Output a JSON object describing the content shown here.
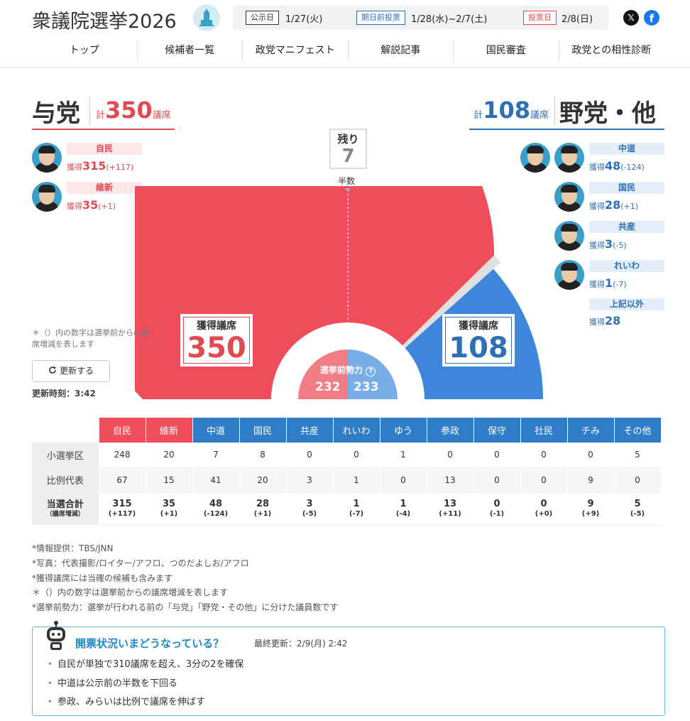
{
  "header": {
    "site_title": "衆議院選挙2026",
    "schedule": [
      {
        "label": "公示日",
        "date": "1/27(火)"
      },
      {
        "label": "期日前投票",
        "date": "1/28(水)~2/7(土)"
      },
      {
        "label": "投票日",
        "date": "2/8(日)"
      }
    ],
    "social": {
      "x": "𝕏",
      "facebook": "f"
    }
  },
  "nav": [
    "トップ",
    "候補者一覧",
    "政党マニフェスト",
    "解説記事",
    "国民審査",
    "政党との相性診断"
  ],
  "ruling": {
    "label": "与党",
    "total_prefix": "計",
    "total": "350",
    "total_suffix": "議席",
    "color": "#e24a52"
  },
  "opposition": {
    "label": "野党・他",
    "total_prefix": "計",
    "total": "108",
    "total_suffix": "議席",
    "color": "#2f6fb5"
  },
  "ruling_parties": [
    {
      "name": "自民",
      "seats_prefix": "獲得",
      "seats": "315",
      "diff": "(+117)"
    },
    {
      "name": "維新",
      "seats_prefix": "獲得",
      "seats": "35",
      "diff": "(+1)"
    }
  ],
  "opposition_parties": [
    {
      "name": "中道",
      "seats_prefix": "獲得",
      "seats": "48",
      "diff": "(-124)"
    },
    {
      "name": "国民",
      "seats_prefix": "獲得",
      "seats": "28",
      "diff": "(+1)"
    },
    {
      "name": "共産",
      "seats_prefix": "獲得",
      "seats": "3",
      "diff": "(-5)"
    },
    {
      "name": "れいわ",
      "seats_prefix": "獲得",
      "seats": "1",
      "diff": "(-7)"
    },
    {
      "name": "上記以外",
      "seats_prefix": "獲得",
      "seats": "28",
      "diff": ""
    }
  ],
  "remaining": {
    "label": "残り",
    "value": "7"
  },
  "half_label": "半数",
  "seat_chart": {
    "total_seats": 465,
    "ruling_seats": 350,
    "remaining_seats": 7,
    "opposition_seats": 108,
    "ruling_color": "#ef4d5c",
    "opposition_color": "#3d86dc",
    "remaining_color": "#e0e0e0",
    "ruling_box_label": "獲得議席",
    "ruling_box_value": "350",
    "opposition_box_label": "獲得議席",
    "opposition_box_value": "108"
  },
  "pre_election": {
    "label": "選挙前勢力",
    "help_icon": "?",
    "ruling": "232",
    "opposition": "233",
    "ruling_color": "#f17e87",
    "opposition_color": "#78aee8"
  },
  "left_note": "＊（）内の数字は選挙前からの議席増減を表します",
  "refresh": {
    "icon": "refresh-icon",
    "label": "更新する"
  },
  "update_time": "更新時刻：3:42",
  "table": {
    "parties": [
      {
        "name": "自民",
        "color": "#ef4d5c"
      },
      {
        "name": "維新",
        "color": "#ef4d5c"
      },
      {
        "name": "中道",
        "color": "#2f7dc8"
      },
      {
        "name": "国民",
        "color": "#2f7dc8"
      },
      {
        "name": "共産",
        "color": "#2f7dc8"
      },
      {
        "name": "れいわ",
        "color": "#2f7dc8"
      },
      {
        "name": "ゆう",
        "color": "#2f7dc8"
      },
      {
        "name": "参政",
        "color": "#2f7dc8"
      },
      {
        "name": "保守",
        "color": "#2f7dc8"
      },
      {
        "name": "社民",
        "color": "#2f7dc8"
      },
      {
        "name": "チみ",
        "color": "#2f7dc8"
      },
      {
        "name": "その他",
        "color": "#2f7dc8"
      }
    ],
    "rows": [
      {
        "label": "小選挙区",
        "values": [
          "248",
          "20",
          "7",
          "8",
          "0",
          "0",
          "1",
          "0",
          "0",
          "0",
          "0",
          "5"
        ]
      },
      {
        "label": "比例代表",
        "values": [
          "67",
          "15",
          "41",
          "20",
          "3",
          "1",
          "0",
          "13",
          "0",
          "0",
          "9",
          "0"
        ]
      }
    ],
    "total_row": {
      "label": "当選合計",
      "sublabel": "（議席増減）",
      "values": [
        "315",
        "35",
        "48",
        "28",
        "3",
        "1",
        "1",
        "13",
        "0",
        "0",
        "9",
        "5"
      ],
      "diffs": [
        "(+117)",
        "(+1)",
        "(-124)",
        "(+1)",
        "(-5)",
        "(-7)",
        "(-4)",
        "(+11)",
        "(-1)",
        "(+0)",
        "(+9)",
        "(-5)"
      ]
    }
  },
  "notes": [
    "*情報提供：TBS/JNN",
    "*写真：代表撮影/ロイター/アフロ、つのだよしお/アフロ",
    "*獲得議席には当確の候補も含みます",
    "＊（）内の数字は選挙前からの議席増減を表します",
    "*選挙前勢力：選挙が行われる前の「与党」「野党・その他」に分けた議員数です"
  ],
  "summary": {
    "title": "開票状況いまどうなっている？",
    "updated": "最終更新：2/9(月) 2:42",
    "items": [
      "自民が単独で310議席を超え、3分の2を確保",
      "中道は公示前の半数を下回る",
      "参政、みらいは比例で議席を伸ばす"
    ]
  }
}
